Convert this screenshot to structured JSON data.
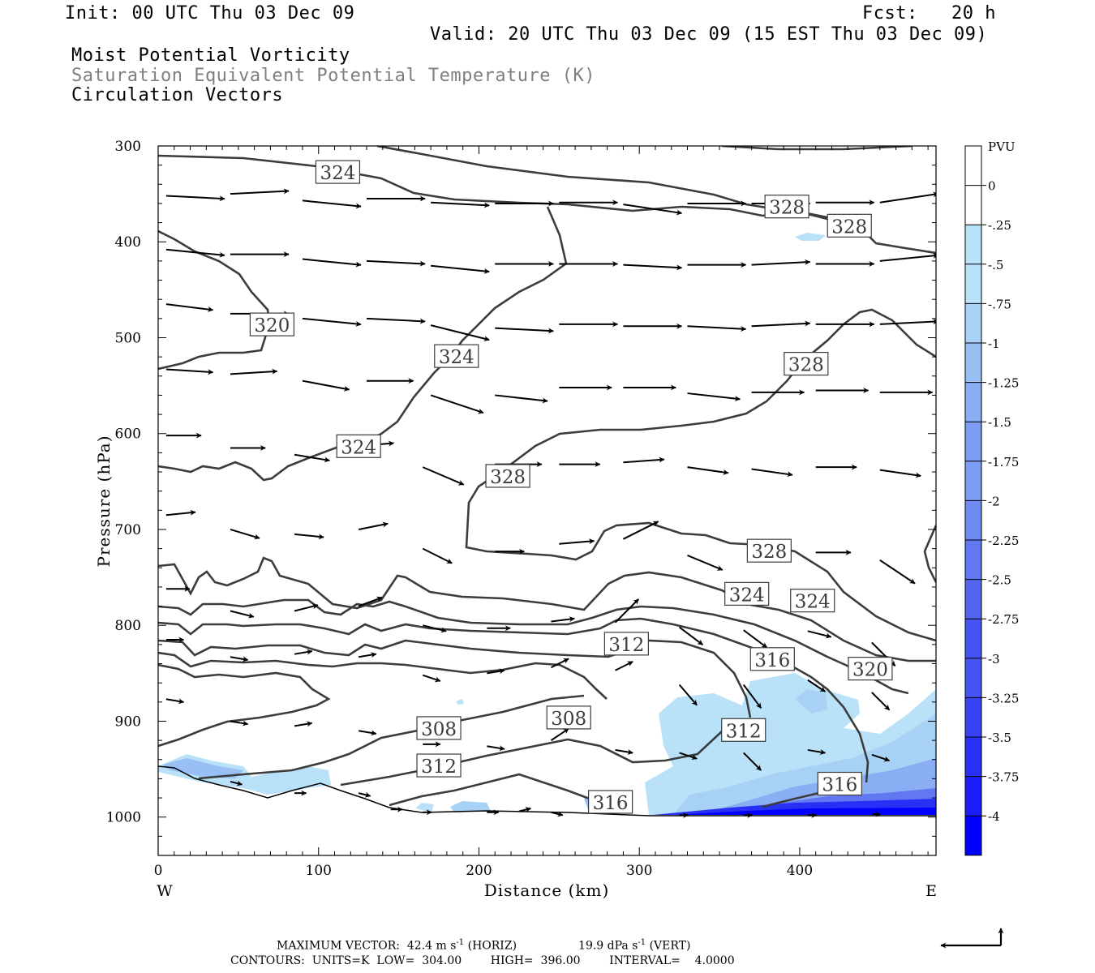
{
  "header": {
    "init": "Init: 00 UTC Thu 03 Dec 09",
    "fcst": "Fcst:   20 h",
    "valid": "Valid: 20 UTC Thu 03 Dec 09 (15 EST Thu 03 Dec 09)",
    "field1": "Moist Potential Vorticity",
    "field2": "Saturation Equivalent Potential Temperature (K)",
    "field3": "Circulation Vectors"
  },
  "colors": {
    "contour": "#3c3c3c",
    "field2_text": "#7f7f7f",
    "shade": [
      "#b9e2f8",
      "#a7d2f6",
      "#98c0f5",
      "#8aaef4",
      "#7d9cf3",
      "#6f8af2",
      "#6178f2",
      "#5366f2",
      "#4554f3",
      "#3742f4",
      "#2930f6",
      "#1b1ef8",
      "#0000ff"
    ]
  },
  "chart_data": {
    "type": "contour-section",
    "xlabel": "Distance (km)",
    "ylabel": "Pressure (hPa)",
    "xlim": [
      0,
      485
    ],
    "ylim": [
      1040,
      300
    ],
    "xticks": [
      0,
      100,
      200,
      300,
      400
    ],
    "yticks": [
      300,
      400,
      500,
      600,
      700,
      800,
      900,
      1000
    ],
    "x_endpoints": {
      "left": "W",
      "right": "E"
    },
    "colorbar": {
      "unit": "PVU",
      "labels": [
        "0",
        "-.25",
        "-.5",
        "-.75",
        "-1",
        "-1.25",
        "-1.5",
        "-1.75",
        "-2",
        "-2.25",
        "-2.5",
        "-2.75",
        "-3",
        "-3.25",
        "-3.5",
        "-3.75",
        "-4"
      ]
    },
    "theta_labels": [
      {
        "text": "324",
        "x": 112,
        "p": 328
      },
      {
        "text": "328",
        "x": 392,
        "p": 364
      },
      {
        "text": "328",
        "x": 431,
        "p": 384
      },
      {
        "text": "320",
        "x": 71,
        "p": 487
      },
      {
        "text": "324",
        "x": 186,
        "p": 520
      },
      {
        "text": "328",
        "x": 404,
        "p": 528
      },
      {
        "text": "324",
        "x": 125,
        "p": 614
      },
      {
        "text": "328",
        "x": 218,
        "p": 645
      },
      {
        "text": "328",
        "x": 381,
        "p": 723
      },
      {
        "text": "324",
        "x": 367,
        "p": 768
      },
      {
        "text": "324",
        "x": 408,
        "p": 775
      },
      {
        "text": "312",
        "x": 292,
        "p": 820
      },
      {
        "text": "316",
        "x": 383,
        "p": 836
      },
      {
        "text": "320",
        "x": 444,
        "p": 846
      },
      {
        "text": "308",
        "x": 256,
        "p": 897
      },
      {
        "text": "308",
        "x": 175,
        "p": 908
      },
      {
        "text": "312",
        "x": 365,
        "p": 910
      },
      {
        "text": "312",
        "x": 175,
        "p": 947
      },
      {
        "text": "316",
        "x": 425,
        "p": 966
      },
      {
        "text": "316",
        "x": 282,
        "p": 985
      }
    ],
    "vectors": [
      {
        "x": 5,
        "p": 352,
        "u": 1.0,
        "w": -0.05
      },
      {
        "x": 45,
        "p": 350,
        "u": 1.0,
        "w": 0.05
      },
      {
        "x": 90,
        "p": 357,
        "u": 1.0,
        "w": -0.1
      },
      {
        "x": 130,
        "p": 355,
        "u": 1.0,
        "w": 0.0
      },
      {
        "x": 170,
        "p": 359,
        "u": 1.0,
        "w": -0.05
      },
      {
        "x": 210,
        "p": 360,
        "u": 1.0,
        "w": 0.0
      },
      {
        "x": 250,
        "p": 359,
        "u": 1.0,
        "w": 0.0
      },
      {
        "x": 290,
        "p": 361,
        "u": 1.0,
        "w": -0.15
      },
      {
        "x": 330,
        "p": 360,
        "u": 1.0,
        "w": 0.0
      },
      {
        "x": 370,
        "p": 360,
        "u": 1.0,
        "w": 0.0
      },
      {
        "x": 410,
        "p": 359,
        "u": 1.0,
        "w": 0.0
      },
      {
        "x": 450,
        "p": 359,
        "u": 1.0,
        "w": 0.15
      },
      {
        "x": 5,
        "p": 408,
        "u": 1.0,
        "w": -0.1
      },
      {
        "x": 45,
        "p": 413,
        "u": 1.0,
        "w": 0.0
      },
      {
        "x": 90,
        "p": 418,
        "u": 1.0,
        "w": -0.1
      },
      {
        "x": 130,
        "p": 420,
        "u": 1.0,
        "w": -0.05
      },
      {
        "x": 170,
        "p": 425,
        "u": 1.0,
        "w": -0.1
      },
      {
        "x": 210,
        "p": 423,
        "u": 1.0,
        "w": 0.0
      },
      {
        "x": 250,
        "p": 423,
        "u": 1.0,
        "w": 0.0
      },
      {
        "x": 290,
        "p": 424,
        "u": 1.0,
        "w": -0.05
      },
      {
        "x": 330,
        "p": 424,
        "u": 1.0,
        "w": 0.0
      },
      {
        "x": 370,
        "p": 424,
        "u": 1.0,
        "w": 0.05
      },
      {
        "x": 410,
        "p": 423,
        "u": 1.0,
        "w": 0.0
      },
      {
        "x": 450,
        "p": 420,
        "u": 1.0,
        "w": 0.1
      },
      {
        "x": 5,
        "p": 465,
        "u": 0.8,
        "w": -0.1
      },
      {
        "x": 45,
        "p": 475,
        "u": 1.0,
        "w": 0.0
      },
      {
        "x": 90,
        "p": 480,
        "u": 1.0,
        "w": -0.1
      },
      {
        "x": 130,
        "p": 480,
        "u": 1.0,
        "w": -0.05
      },
      {
        "x": 170,
        "p": 487,
        "u": 1.0,
        "w": -0.25
      },
      {
        "x": 210,
        "p": 490,
        "u": 1.0,
        "w": -0.05
      },
      {
        "x": 250,
        "p": 486,
        "u": 1.0,
        "w": 0.0
      },
      {
        "x": 290,
        "p": 488,
        "u": 1.0,
        "w": 0.0
      },
      {
        "x": 330,
        "p": 488,
        "u": 1.0,
        "w": -0.05
      },
      {
        "x": 370,
        "p": 488,
        "u": 1.0,
        "w": 0.05
      },
      {
        "x": 410,
        "p": 486,
        "u": 1.0,
        "w": 0.0
      },
      {
        "x": 450,
        "p": 486,
        "u": 1.0,
        "w": 0.05
      },
      {
        "x": 5,
        "p": 533,
        "u": 0.8,
        "w": -0.05
      },
      {
        "x": 45,
        "p": 538,
        "u": 0.8,
        "w": 0.05
      },
      {
        "x": 90,
        "p": 545,
        "u": 0.8,
        "w": -0.15
      },
      {
        "x": 130,
        "p": 545,
        "u": 0.8,
        "w": 0.0
      },
      {
        "x": 170,
        "p": 560,
        "u": 0.9,
        "w": -0.3
      },
      {
        "x": 210,
        "p": 560,
        "u": 0.9,
        "w": -0.1
      },
      {
        "x": 250,
        "p": 552,
        "u": 0.9,
        "w": 0.0
      },
      {
        "x": 290,
        "p": 552,
        "u": 0.9,
        "w": 0.0
      },
      {
        "x": 330,
        "p": 558,
        "u": 0.9,
        "w": -0.1
      },
      {
        "x": 370,
        "p": 557,
        "u": 0.9,
        "w": 0.0
      },
      {
        "x": 410,
        "p": 555,
        "u": 0.9,
        "w": 0.0
      },
      {
        "x": 450,
        "p": 557,
        "u": 0.9,
        "w": 0.0
      },
      {
        "x": 5,
        "p": 602,
        "u": 0.6,
        "w": 0.0
      },
      {
        "x": 45,
        "p": 615,
        "u": 0.6,
        "w": 0.0
      },
      {
        "x": 85,
        "p": 622,
        "u": 0.6,
        "w": -0.1
      },
      {
        "x": 125,
        "p": 613,
        "u": 0.6,
        "w": 0.05
      },
      {
        "x": 165,
        "p": 635,
        "u": 0.7,
        "w": -0.3
      },
      {
        "x": 210,
        "p": 632,
        "u": 0.8,
        "w": 0.0
      },
      {
        "x": 250,
        "p": 632,
        "u": 0.7,
        "w": 0.0
      },
      {
        "x": 290,
        "p": 630,
        "u": 0.7,
        "w": 0.05
      },
      {
        "x": 330,
        "p": 635,
        "u": 0.7,
        "w": -0.1
      },
      {
        "x": 370,
        "p": 637,
        "u": 0.7,
        "w": -0.1
      },
      {
        "x": 410,
        "p": 635,
        "u": 0.7,
        "w": 0.0
      },
      {
        "x": 450,
        "p": 638,
        "u": 0.7,
        "w": -0.1
      },
      {
        "x": 5,
        "p": 685,
        "u": 0.5,
        "w": 0.05
      },
      {
        "x": 45,
        "p": 700,
        "u": 0.5,
        "w": -0.15
      },
      {
        "x": 85,
        "p": 705,
        "u": 0.5,
        "w": -0.05
      },
      {
        "x": 125,
        "p": 700,
        "u": 0.5,
        "w": 0.1
      },
      {
        "x": 165,
        "p": 720,
        "u": 0.5,
        "w": -0.25
      },
      {
        "x": 210,
        "p": 723,
        "u": 0.5,
        "w": 0.0
      },
      {
        "x": 250,
        "p": 715,
        "u": 0.6,
        "w": 0.05
      },
      {
        "x": 290,
        "p": 710,
        "u": 0.6,
        "w": 0.3
      },
      {
        "x": 330,
        "p": 727,
        "u": 0.6,
        "w": -0.25
      },
      {
        "x": 370,
        "p": 720,
        "u": 0.6,
        "w": 0.0
      },
      {
        "x": 410,
        "p": 724,
        "u": 0.6,
        "w": 0.0
      },
      {
        "x": 450,
        "p": 732,
        "u": 0.6,
        "w": -0.4
      },
      {
        "x": 5,
        "p": 762,
        "u": 0.4,
        "w": 0.0
      },
      {
        "x": 45,
        "p": 785,
        "u": 0.4,
        "w": -0.1
      },
      {
        "x": 85,
        "p": 785,
        "u": 0.4,
        "w": 0.1
      },
      {
        "x": 125,
        "p": 780,
        "u": 0.4,
        "w": 0.15
      },
      {
        "x": 165,
        "p": 800,
        "u": 0.4,
        "w": -0.1
      },
      {
        "x": 205,
        "p": 803,
        "u": 0.4,
        "w": 0.0
      },
      {
        "x": 245,
        "p": 796,
        "u": 0.4,
        "w": 0.05
      },
      {
        "x": 285,
        "p": 797,
        "u": 0.4,
        "w": 0.4
      },
      {
        "x": 325,
        "p": 802,
        "u": 0.4,
        "w": -0.3
      },
      {
        "x": 365,
        "p": 805,
        "u": 0.4,
        "w": -0.3
      },
      {
        "x": 405,
        "p": 806,
        "u": 0.4,
        "w": -0.1
      },
      {
        "x": 445,
        "p": 818,
        "u": 0.4,
        "w": -0.4
      },
      {
        "x": 5,
        "p": 815,
        "u": 0.3,
        "w": 0.0
      },
      {
        "x": 45,
        "p": 833,
        "u": 0.3,
        "w": -0.05
      },
      {
        "x": 85,
        "p": 830,
        "u": 0.3,
        "w": 0.05
      },
      {
        "x": 125,
        "p": 833,
        "u": 0.3,
        "w": 0.05
      },
      {
        "x": 165,
        "p": 852,
        "u": 0.3,
        "w": -0.1
      },
      {
        "x": 205,
        "p": 850,
        "u": 0.3,
        "w": 0.05
      },
      {
        "x": 245,
        "p": 844,
        "u": 0.3,
        "w": 0.15
      },
      {
        "x": 285,
        "p": 847,
        "u": 0.3,
        "w": 0.15
      },
      {
        "x": 325,
        "p": 862,
        "u": 0.3,
        "w": -0.35
      },
      {
        "x": 365,
        "p": 862,
        "u": 0.3,
        "w": -0.4
      },
      {
        "x": 405,
        "p": 857,
        "u": 0.3,
        "w": -0.2
      },
      {
        "x": 445,
        "p": 870,
        "u": 0.3,
        "w": -0.3
      },
      {
        "x": 5,
        "p": 877,
        "u": 0.3,
        "w": -0.05
      },
      {
        "x": 45,
        "p": 900,
        "u": 0.3,
        "w": -0.05
      },
      {
        "x": 85,
        "p": 905,
        "u": 0.3,
        "w": 0.05
      },
      {
        "x": 125,
        "p": 910,
        "u": 0.3,
        "w": -0.05
      },
      {
        "x": 165,
        "p": 924,
        "u": 0.3,
        "w": 0.0
      },
      {
        "x": 205,
        "p": 926,
        "u": 0.3,
        "w": -0.05
      },
      {
        "x": 245,
        "p": 920,
        "u": 0.3,
        "w": 0.2
      },
      {
        "x": 285,
        "p": 930,
        "u": 0.3,
        "w": -0.05
      },
      {
        "x": 325,
        "p": 933,
        "u": 0.3,
        "w": -0.1
      },
      {
        "x": 365,
        "p": 933,
        "u": 0.3,
        "w": -0.3
      },
      {
        "x": 405,
        "p": 930,
        "u": 0.3,
        "w": -0.05
      },
      {
        "x": 445,
        "p": 935,
        "u": 0.3,
        "w": -0.1
      },
      {
        "x": 45,
        "p": 963,
        "u": 0.2,
        "w": -0.05
      },
      {
        "x": 85,
        "p": 975,
        "u": 0.2,
        "w": 0.0
      },
      {
        "x": 125,
        "p": 975,
        "u": 0.2,
        "w": -0.05
      },
      {
        "x": 145,
        "p": 992,
        "u": 0.2,
        "w": 0.0
      },
      {
        "x": 165,
        "p": 995,
        "u": 0.15,
        "w": 0.0
      },
      {
        "x": 205,
        "p": 995,
        "u": 0.2,
        "w": 0.0
      },
      {
        "x": 225,
        "p": 994,
        "u": 0.2,
        "w": 0.05
      },
      {
        "x": 245,
        "p": 995,
        "u": 0.2,
        "w": -0.05
      },
      {
        "x": 325,
        "p": 998,
        "u": 0.15,
        "w": 0.0
      },
      {
        "x": 365,
        "p": 998,
        "u": 0.15,
        "w": 0.0
      },
      {
        "x": 405,
        "p": 998,
        "u": 0.15,
        "w": 0.0
      },
      {
        "x": 445,
        "p": 997,
        "u": 0.15,
        "w": 0.0
      }
    ]
  },
  "footer": {
    "line1_a": "MAXIMUM VECTOR:  42.4 m s",
    "line1_sup_a": "-1",
    "line1_b": " (HORIZ)",
    "line1_c": "19.9 dPa s",
    "line1_sup_b": "-1",
    "line1_d": " (VERT)",
    "line2": "CONTOURS:  UNITS=K  LOW=  304.00        HIGH=  396.00        INTERVAL=    4.0000"
  }
}
